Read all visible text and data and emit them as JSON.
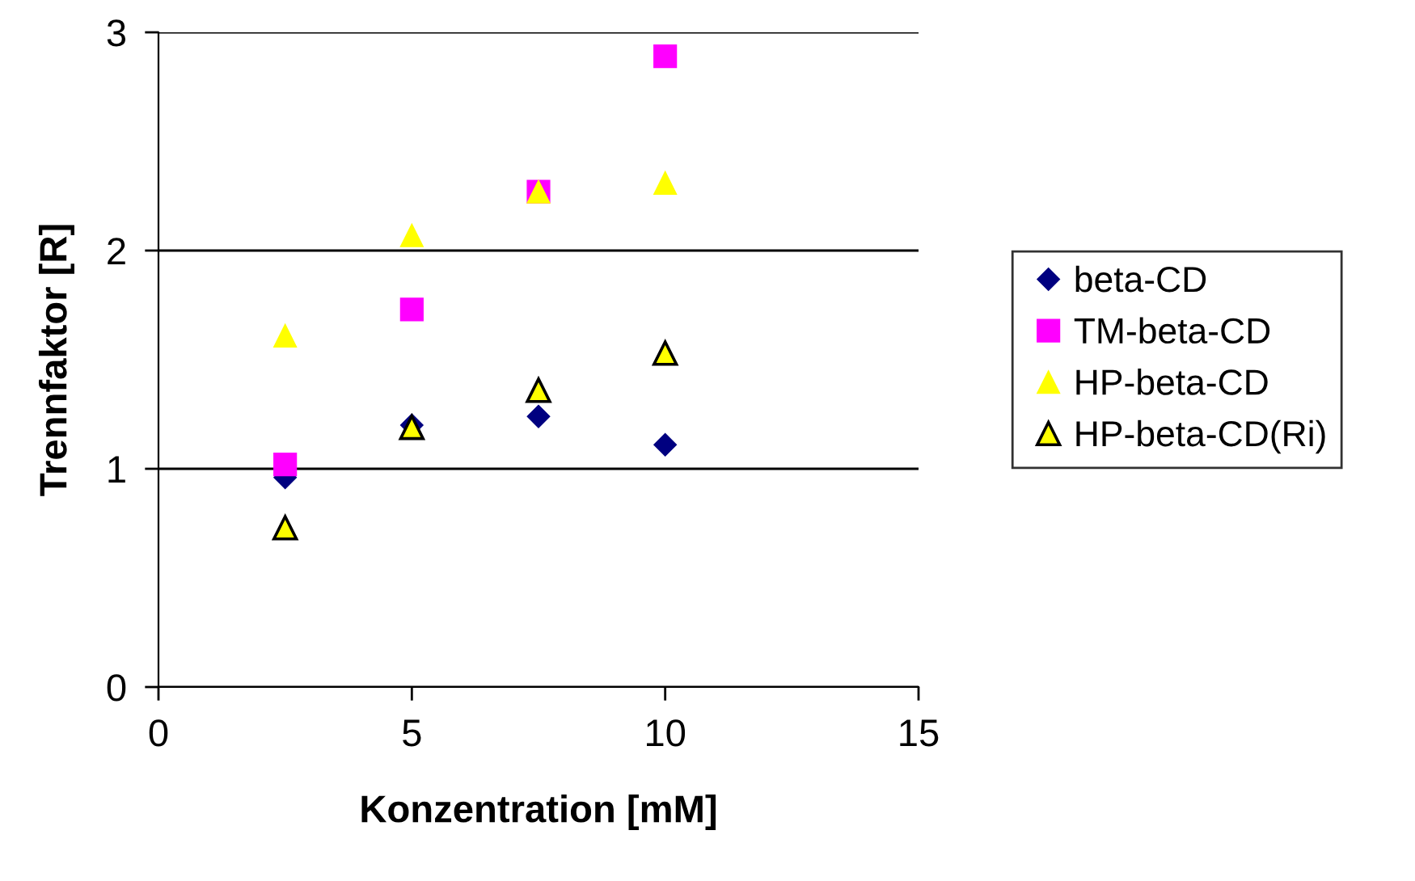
{
  "chart_data": {
    "type": "scatter",
    "xlabel": "Konzentration [mM]",
    "ylabel": "Trennfaktor [R]",
    "xlim": [
      0,
      15
    ],
    "xticks": [
      0,
      5,
      10,
      15
    ],
    "ylim": [
      0,
      3
    ],
    "yticks": [
      0,
      1,
      2,
      3
    ],
    "grid": "y",
    "legend": "right",
    "series": [
      {
        "name": "beta-CD",
        "color": "#000080",
        "marker": "diamond",
        "x": [
          2.5,
          5,
          7.5,
          10
        ],
        "values": [
          0.96,
          1.2,
          1.24,
          1.11
        ]
      },
      {
        "name": "TM-beta-CD",
        "color": "#ff00ff",
        "marker": "square",
        "x": [
          2.5,
          5,
          7.5,
          10
        ],
        "values": [
          1.02,
          1.73,
          2.27,
          2.89
        ]
      },
      {
        "name": "HP-beta-CD",
        "color": "#ffff00",
        "marker": "triangle",
        "x": [
          2.5,
          5,
          7.5,
          10
        ],
        "values": [
          1.61,
          2.07,
          2.27,
          2.31
        ]
      },
      {
        "name": "HP-beta-CD(Ri)",
        "color": "#ffff00",
        "marker": "triangle",
        "x": [
          2.5,
          5,
          7.5,
          10
        ],
        "values": [
          0.73,
          1.19,
          1.36,
          1.53
        ]
      }
    ]
  }
}
